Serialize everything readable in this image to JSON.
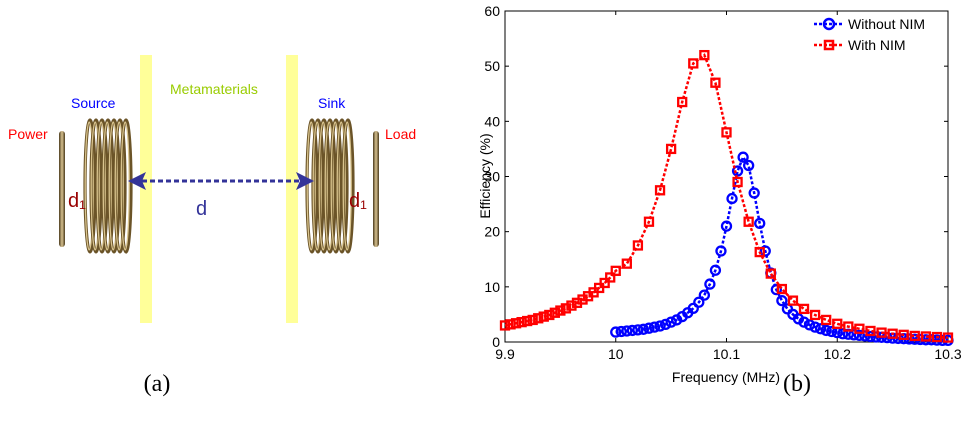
{
  "diagram": {
    "power": "Power",
    "source": "Source",
    "metamaterials": "Metamaterials",
    "sink": "Sink",
    "load": "Load",
    "d1_left": "d₁",
    "d1_right": "d₁",
    "distance": "d",
    "caption": "(a)",
    "colors": {
      "red": "#ff0000",
      "blue": "#0000ff",
      "green": "#99cc00",
      "slab": "#ffff99",
      "arrow": "#333399",
      "d1": "#990000"
    }
  },
  "chart_caption": "(b)",
  "chart_data": {
    "type": "line",
    "xlabel": "Frequency (MHz)",
    "ylabel": "Efficiency (%)",
    "xlim": [
      9.9,
      10.3
    ],
    "ylim": [
      0,
      60
    ],
    "xticks": [
      "9.9",
      "10",
      "10.1",
      "10.2",
      "10.3"
    ],
    "yticks": [
      "0",
      "10",
      "20",
      "30",
      "40",
      "50",
      "60"
    ],
    "grid": false,
    "legend_position": "top-right",
    "series": [
      {
        "name": "Without NIM",
        "color": "#0000ff",
        "marker": "circle",
        "x": [
          10.0,
          10.005,
          10.01,
          10.015,
          10.02,
          10.025,
          10.03,
          10.035,
          10.04,
          10.045,
          10.05,
          10.055,
          10.06,
          10.065,
          10.07,
          10.075,
          10.08,
          10.085,
          10.09,
          10.095,
          10.1,
          10.105,
          10.11,
          10.115,
          10.12,
          10.125,
          10.13,
          10.135,
          10.14,
          10.145,
          10.15,
          10.155,
          10.16,
          10.165,
          10.17,
          10.175,
          10.18,
          10.185,
          10.19,
          10.195,
          10.2,
          10.205,
          10.21,
          10.215,
          10.22,
          10.225,
          10.23,
          10.235,
          10.24,
          10.245,
          10.25,
          10.255,
          10.26,
          10.265,
          10.27,
          10.275,
          10.28,
          10.285,
          10.29,
          10.295,
          10.3
        ],
        "y": [
          1.8,
          1.9,
          2.0,
          2.1,
          2.2,
          2.3,
          2.5,
          2.7,
          2.9,
          3.2,
          3.6,
          4.0,
          4.6,
          5.3,
          6.1,
          7.2,
          8.5,
          10.5,
          13.0,
          16.5,
          21.0,
          26.0,
          31.0,
          33.5,
          32.0,
          27.0,
          21.5,
          16.5,
          12.5,
          9.5,
          7.5,
          6.0,
          5.0,
          4.2,
          3.6,
          3.1,
          2.7,
          2.4,
          2.1,
          1.9,
          1.7,
          1.5,
          1.4,
          1.3,
          1.2,
          1.1,
          1.0,
          0.9,
          0.85,
          0.8,
          0.7,
          0.65,
          0.6,
          0.55,
          0.5,
          0.45,
          0.4,
          0.4,
          0.35,
          0.3,
          0.3
        ]
      },
      {
        "name": "With NIM",
        "color": "#ff0000",
        "marker": "square",
        "x": [
          9.9,
          9.905,
          9.91,
          9.915,
          9.92,
          9.925,
          9.93,
          9.935,
          9.94,
          9.945,
          9.95,
          9.955,
          9.96,
          9.965,
          9.97,
          9.975,
          9.98,
          9.985,
          9.99,
          9.995,
          10.0,
          10.01,
          10.02,
          10.03,
          10.04,
          10.05,
          10.06,
          10.07,
          10.08,
          10.09,
          10.1,
          10.11,
          10.12,
          10.13,
          10.14,
          10.15,
          10.16,
          10.17,
          10.18,
          10.19,
          10.2,
          10.21,
          10.22,
          10.23,
          10.24,
          10.25,
          10.26,
          10.27,
          10.28,
          10.29,
          10.3
        ],
        "y": [
          3.0,
          3.2,
          3.4,
          3.6,
          3.8,
          4.0,
          4.3,
          4.6,
          4.9,
          5.3,
          5.7,
          6.1,
          6.6,
          7.1,
          7.7,
          8.3,
          9.0,
          9.8,
          10.7,
          11.7,
          12.9,
          14.2,
          17.5,
          21.8,
          27.5,
          35.0,
          43.5,
          50.5,
          52.0,
          47.0,
          38.0,
          29.0,
          21.8,
          16.3,
          12.4,
          9.6,
          7.5,
          6.0,
          4.9,
          4.0,
          3.3,
          2.8,
          2.4,
          2.0,
          1.7,
          1.5,
          1.3,
          1.1,
          1.0,
          0.9,
          0.8
        ]
      }
    ]
  }
}
